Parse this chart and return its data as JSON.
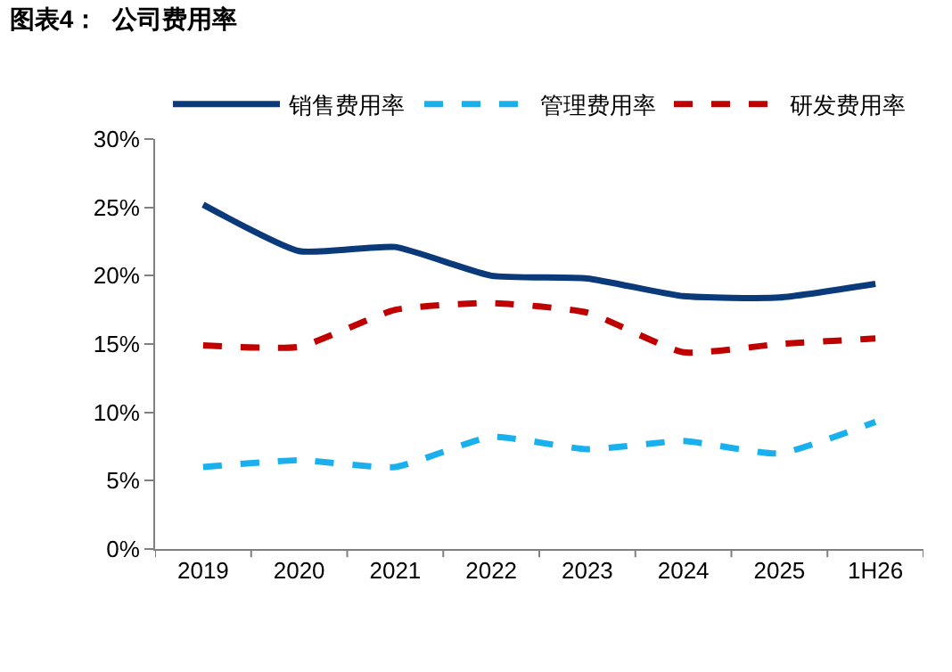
{
  "chart_data": {
    "type": "line",
    "title": "图表4：  公司费用率",
    "categories": [
      "2019",
      "2020",
      "2021",
      "2022",
      "2023",
      "2024",
      "2025",
      "1H26"
    ],
    "series": [
      {
        "name": "销售费用率",
        "color": "#0a3a7a",
        "line_style": "solid",
        "values": [
          25.2,
          21.8,
          22.1,
          20.0,
          19.8,
          18.5,
          18.4,
          19.4
        ]
      },
      {
        "name": "管理费用率",
        "color": "#1ab0ee",
        "line_style": "dashed",
        "values": [
          6.0,
          6.5,
          6.0,
          8.2,
          7.3,
          7.9,
          7.0,
          9.3
        ]
      },
      {
        "name": "研发费用率",
        "color": "#c00000",
        "line_style": "dashed",
        "values": [
          14.9,
          14.8,
          17.5,
          18.0,
          17.3,
          14.4,
          15.0,
          15.4
        ]
      }
    ],
    "ylim": [
      0,
      30
    ],
    "yticks": [
      {
        "value": 0,
        "label": "0%"
      },
      {
        "value": 5,
        "label": "5%"
      },
      {
        "value": 10,
        "label": "10%"
      },
      {
        "value": 15,
        "label": "15%"
      },
      {
        "value": 20,
        "label": "20%"
      },
      {
        "value": 25,
        "label": "25%"
      },
      {
        "value": 30,
        "label": "30%"
      }
    ],
    "legend": "top",
    "marker": "none"
  }
}
